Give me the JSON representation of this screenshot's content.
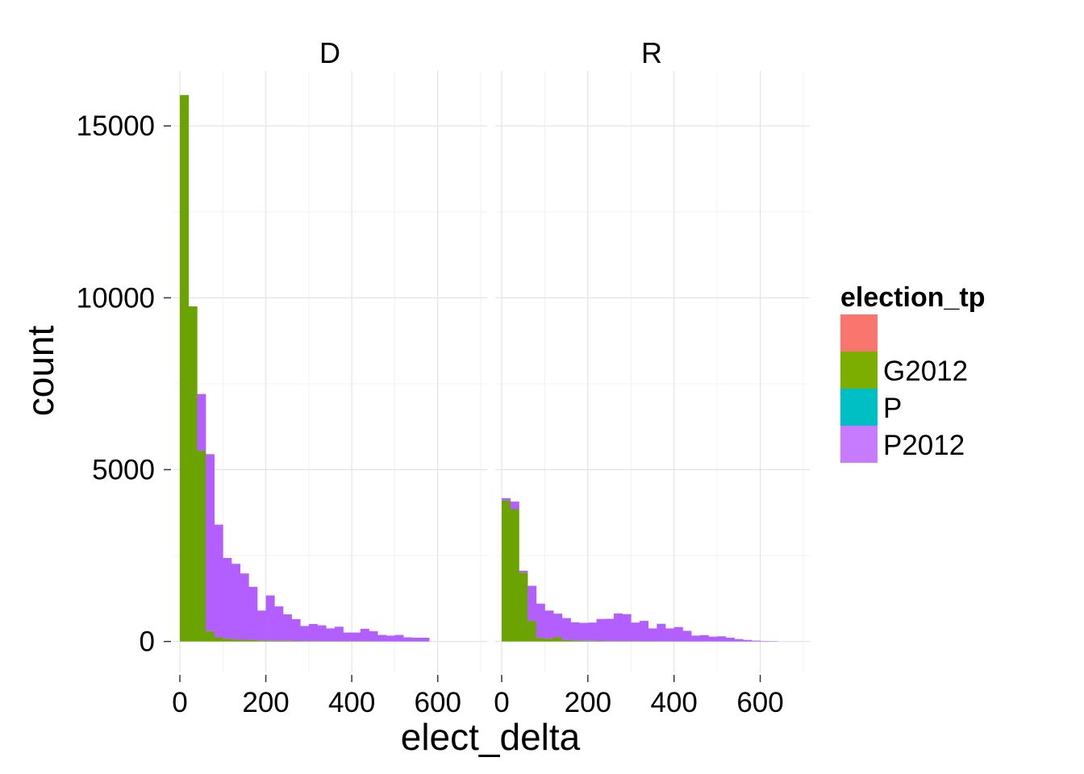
{
  "chart_data": {
    "type": "bar",
    "subtype": "faceted stacked histogram",
    "xlabel": "elect_delta",
    "ylabel": "count",
    "xlim": [
      -15,
      715
    ],
    "ylim": [
      -900,
      16600
    ],
    "x_ticks": [
      0,
      200,
      400,
      600
    ],
    "x_tick_labels": [
      "0",
      "200",
      "400",
      "600"
    ],
    "y_ticks": [
      0,
      5000,
      10000,
      15000
    ],
    "y_tick_labels": [
      "0",
      "5000",
      "10000",
      "15000"
    ],
    "bin_width": 20,
    "grid": true,
    "legend": {
      "title": "election_tp",
      "position": "right",
      "entries": [
        {
          "label": "",
          "color": "#F8766D"
        },
        {
          "label": "G2012",
          "color": "#7CAE00"
        },
        {
          "label": "P",
          "color": "#00BFC4"
        },
        {
          "label": "P2012",
          "color": "#C77CFF"
        }
      ]
    },
    "colors": {
      "G2012": "#6BA300",
      "P2012": "#B35FFF"
    },
    "facets": [
      {
        "label": "D",
        "bins": [
          {
            "x0": 0,
            "G2012": 15900,
            "P2012": 0
          },
          {
            "x0": 20,
            "G2012": 9750,
            "P2012": 0
          },
          {
            "x0": 40,
            "G2012": 5550,
            "P2012": 1650
          },
          {
            "x0": 60,
            "G2012": 300,
            "P2012": 5150
          },
          {
            "x0": 80,
            "G2012": 120,
            "P2012": 3280
          },
          {
            "x0": 100,
            "G2012": 80,
            "P2012": 2350
          },
          {
            "x0": 120,
            "G2012": 60,
            "P2012": 2200
          },
          {
            "x0": 140,
            "G2012": 50,
            "P2012": 1930
          },
          {
            "x0": 160,
            "G2012": 40,
            "P2012": 1550
          },
          {
            "x0": 180,
            "G2012": 30,
            "P2012": 870
          },
          {
            "x0": 200,
            "G2012": 20,
            "P2012": 1320
          },
          {
            "x0": 220,
            "G2012": 20,
            "P2012": 1000
          },
          {
            "x0": 240,
            "G2012": 20,
            "P2012": 770
          },
          {
            "x0": 260,
            "G2012": 15,
            "P2012": 635
          },
          {
            "x0": 280,
            "G2012": 10,
            "P2012": 440
          },
          {
            "x0": 300,
            "G2012": 10,
            "P2012": 500
          },
          {
            "x0": 320,
            "G2012": 10,
            "P2012": 460
          },
          {
            "x0": 340,
            "G2012": 5,
            "P2012": 375
          },
          {
            "x0": 360,
            "G2012": 5,
            "P2012": 425
          },
          {
            "x0": 380,
            "G2012": 5,
            "P2012": 255
          },
          {
            "x0": 400,
            "G2012": 5,
            "P2012": 255
          },
          {
            "x0": 420,
            "G2012": 5,
            "P2012": 365
          },
          {
            "x0": 440,
            "G2012": 5,
            "P2012": 295
          },
          {
            "x0": 460,
            "G2012": 0,
            "P2012": 190
          },
          {
            "x0": 480,
            "G2012": 0,
            "P2012": 170
          },
          {
            "x0": 500,
            "G2012": 0,
            "P2012": 190
          },
          {
            "x0": 520,
            "G2012": 0,
            "P2012": 120
          },
          {
            "x0": 540,
            "G2012": 0,
            "P2012": 110
          },
          {
            "x0": 560,
            "G2012": 0,
            "P2012": 110
          }
        ]
      },
      {
        "label": "R",
        "bins": [
          {
            "x0": 0,
            "G2012": 4100,
            "P2012": 70
          },
          {
            "x0": 20,
            "G2012": 3850,
            "P2012": 220
          },
          {
            "x0": 40,
            "G2012": 2000,
            "P2012": 60
          },
          {
            "x0": 60,
            "G2012": 600,
            "P2012": 1020
          },
          {
            "x0": 80,
            "G2012": 100,
            "P2012": 1000
          },
          {
            "x0": 100,
            "G2012": 80,
            "P2012": 820
          },
          {
            "x0": 120,
            "G2012": 130,
            "P2012": 680
          },
          {
            "x0": 140,
            "G2012": 40,
            "P2012": 640
          },
          {
            "x0": 160,
            "G2012": 30,
            "P2012": 530
          },
          {
            "x0": 180,
            "G2012": 20,
            "P2012": 520
          },
          {
            "x0": 200,
            "G2012": 20,
            "P2012": 530
          },
          {
            "x0": 220,
            "G2012": 15,
            "P2012": 640
          },
          {
            "x0": 240,
            "G2012": 10,
            "P2012": 650
          },
          {
            "x0": 260,
            "G2012": 10,
            "P2012": 805
          },
          {
            "x0": 280,
            "G2012": 10,
            "P2012": 785
          },
          {
            "x0": 300,
            "G2012": 10,
            "P2012": 540
          },
          {
            "x0": 320,
            "G2012": 5,
            "P2012": 595
          },
          {
            "x0": 340,
            "G2012": 5,
            "P2012": 375
          },
          {
            "x0": 360,
            "G2012": 5,
            "P2012": 510
          },
          {
            "x0": 380,
            "G2012": 5,
            "P2012": 375
          },
          {
            "x0": 400,
            "G2012": 5,
            "P2012": 415
          },
          {
            "x0": 420,
            "G2012": 0,
            "P2012": 310
          },
          {
            "x0": 440,
            "G2012": 0,
            "P2012": 170
          },
          {
            "x0": 460,
            "G2012": 0,
            "P2012": 185
          },
          {
            "x0": 480,
            "G2012": 0,
            "P2012": 140
          },
          {
            "x0": 500,
            "G2012": 0,
            "P2012": 150
          },
          {
            "x0": 520,
            "G2012": 0,
            "P2012": 110
          },
          {
            "x0": 540,
            "G2012": 0,
            "P2012": 70
          },
          {
            "x0": 560,
            "G2012": 0,
            "P2012": 45
          },
          {
            "x0": 580,
            "G2012": 0,
            "P2012": 25
          },
          {
            "x0": 600,
            "G2012": 0,
            "P2012": 15
          },
          {
            "x0": 620,
            "G2012": 0,
            "P2012": 10
          }
        ]
      }
    ]
  }
}
